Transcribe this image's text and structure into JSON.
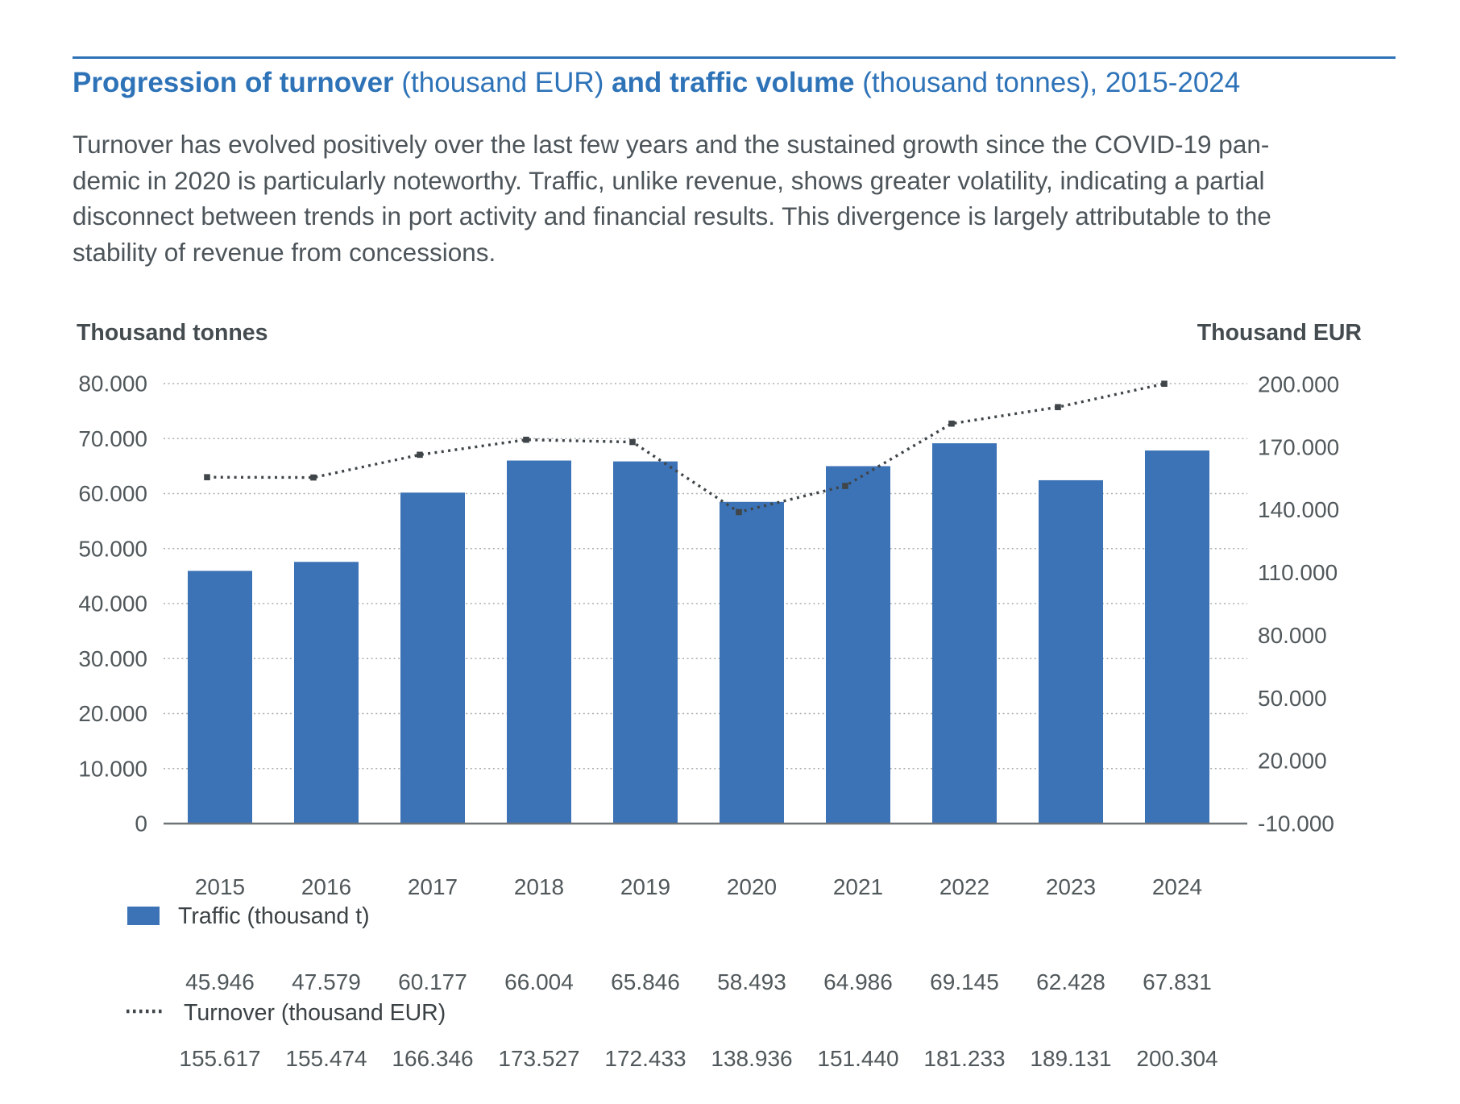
{
  "header": {
    "rule_color": "#2e73b8",
    "title_color": "#2e73b8",
    "title_segments": [
      {
        "text": "Progression of turnover",
        "bold": true
      },
      {
        "text": " (thousand EUR) ",
        "bold": false
      },
      {
        "text": "and traffic volume",
        "bold": true
      },
      {
        "text": " (thousand tonnes), 2015-2024",
        "bold": false
      }
    ]
  },
  "intro": {
    "lines": [
      "Turnover has evolved positively over the last few years and the sustained growth since the COVID-19 pan-",
      "demic in 2020 is particularly noteworthy. Traffic, unlike revenue, shows greater volatility, indicating a partial",
      "disconnect between trends in port activity and financial results. This divergence is largely attributable to the",
      "stability of revenue from concessions."
    ]
  },
  "chart_data": {
    "type": "bar",
    "subtype": "bar-plus-dotted-line-dual-axis",
    "categories": [
      "2015",
      "2016",
      "2017",
      "2018",
      "2019",
      "2020",
      "2021",
      "2022",
      "2023",
      "2024"
    ],
    "series": [
      {
        "name": "Traffic (thousand t)",
        "type": "bar",
        "axis": "left",
        "color": "#3c72b6",
        "values": [
          45946,
          47579,
          60177,
          66004,
          65846,
          58493,
          64986,
          69145,
          62428,
          67831
        ]
      },
      {
        "name": "Turnover (thousand EUR)",
        "type": "dotted-line",
        "axis": "right",
        "color": "#3f4548",
        "values": [
          155617,
          155474,
          166346,
          173527,
          172433,
          138936,
          151440,
          181233,
          189131,
          200304
        ]
      }
    ],
    "left_axis": {
      "title": "Thousand tonnes",
      "min": 0,
      "max": 80000,
      "step": 10000
    },
    "right_axis": {
      "title": "Thousand EUR",
      "min": -10000,
      "max": 200000,
      "step": 30000
    },
    "grid": "dotted-horizontal",
    "legend_position": "below-chart-with-value-rows",
    "number_format": "thousands-dot-separator"
  }
}
